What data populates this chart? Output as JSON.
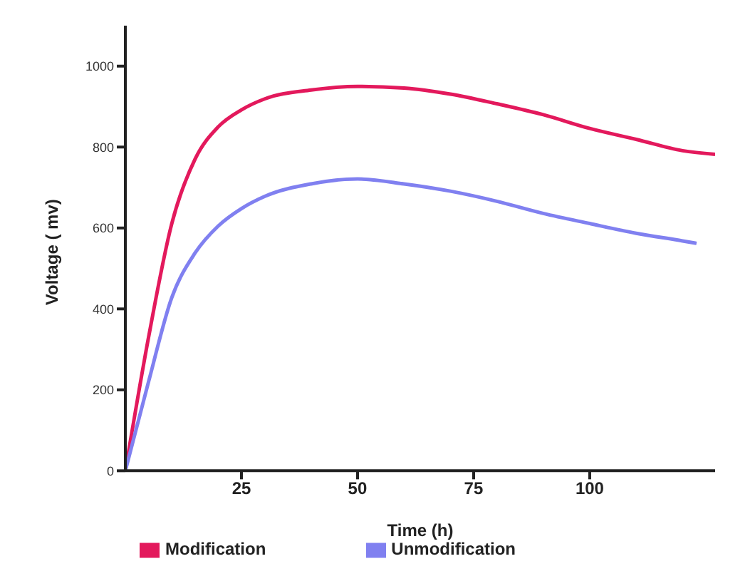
{
  "chart_data": {
    "type": "line",
    "xlabel": "Time (h)",
    "ylabel": "Voltage ( mv)",
    "x": [
      0,
      5,
      10,
      15,
      20,
      25,
      30,
      40,
      50,
      60,
      70,
      80,
      90,
      100,
      110,
      120,
      127
    ],
    "series": [
      {
        "name": "Modification",
        "color": "#e3195c",
        "values": [
          0,
          330,
          611,
          770,
          850,
          892,
          919,
          941,
          950,
          946,
          931,
          907,
          880,
          846,
          819,
          791,
          782
        ]
      },
      {
        "name": "Unmodification",
        "color": "#8080f0",
        "x": [
          0,
          5,
          10,
          15,
          20,
          25,
          30,
          40,
          50,
          60,
          70,
          80,
          90,
          100,
          110,
          120,
          123
        ],
        "values": [
          0,
          220,
          428,
          538,
          605,
          648,
          678,
          709,
          721,
          709,
          691,
          666,
          636,
          611,
          587,
          568,
          562
        ]
      }
    ],
    "xlim": [
      0,
      127
    ],
    "xticks": [
      25,
      50,
      75,
      100
    ],
    "ylim": [
      0,
      1100
    ],
    "yticks": [
      0,
      200,
      400,
      600,
      800,
      1000
    ],
    "grid": false,
    "legend": "bottom",
    "marker": "none",
    "line_style": "solid"
  }
}
